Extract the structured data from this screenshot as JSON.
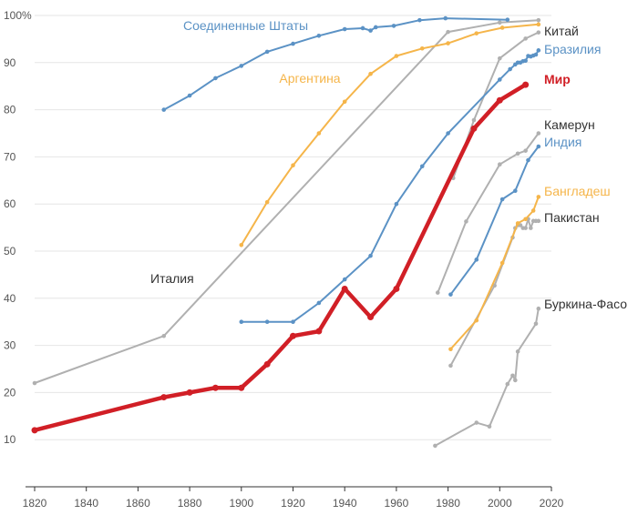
{
  "chart_data": {
    "type": "line",
    "title": "",
    "xlabel": "",
    "ylabel": "",
    "xlim": [
      1820,
      2020
    ],
    "ylim": [
      0,
      100
    ],
    "x_ticks": [
      1820,
      1840,
      1860,
      1880,
      1900,
      1920,
      1940,
      1960,
      1980,
      2000,
      2020
    ],
    "y_ticks": [
      {
        "value": 10,
        "label": "10"
      },
      {
        "value": 20,
        "label": "20"
      },
      {
        "value": 30,
        "label": "30"
      },
      {
        "value": 40,
        "label": "40"
      },
      {
        "value": 50,
        "label": "50"
      },
      {
        "value": 60,
        "label": "60"
      },
      {
        "value": 70,
        "label": "70"
      },
      {
        "value": 80,
        "label": "80"
      },
      {
        "value": 90,
        "label": "90"
      },
      {
        "value": 100,
        "label": "100%"
      }
    ],
    "series": [
      {
        "name": "Италия",
        "color": "#b0b0b0",
        "highlight": false,
        "label_anchor": "start",
        "points": [
          [
            1820,
            22
          ],
          [
            1870,
            32
          ],
          [
            1980,
            96.5
          ],
          [
            2000,
            98.5
          ],
          [
            2015,
            99
          ]
        ]
      },
      {
        "name": "Буркина-Фасо",
        "color": "#b0b0b0",
        "highlight": false,
        "label_anchor": "start",
        "points": [
          [
            1975,
            8.7
          ],
          [
            1991,
            13.6
          ],
          [
            1996,
            12.8
          ],
          [
            2003,
            21.8
          ],
          [
            2005,
            23.6
          ],
          [
            2006,
            22.6
          ],
          [
            2007,
            28.7
          ],
          [
            2014,
            34.6
          ],
          [
            2015,
            37.8
          ]
        ]
      },
      {
        "name": "Пакистан",
        "color": "#b0b0b0",
        "highlight": false,
        "label_anchor": "start",
        "points": [
          [
            1981,
            25.7
          ],
          [
            1998,
            42.7
          ],
          [
            2005,
            52.9
          ],
          [
            2006,
            54.9
          ],
          [
            2007,
            55.5
          ],
          [
            2008,
            55.5
          ],
          [
            2009,
            54.9
          ],
          [
            2010,
            54.9
          ],
          [
            2011,
            56.8
          ],
          [
            2012,
            54.9
          ],
          [
            2013,
            56.4
          ],
          [
            2014,
            56.4
          ],
          [
            2015,
            56.4
          ]
        ]
      },
      {
        "name": "Камерун",
        "color": "#b0b0b0",
        "highlight": false,
        "label_anchor": "start",
        "points": [
          [
            1976,
            41.2
          ],
          [
            1987,
            56.3
          ],
          [
            2000,
            68.4
          ],
          [
            2007,
            70.7
          ],
          [
            2010,
            71.3
          ],
          [
            2015,
            75
          ]
        ]
      },
      {
        "name": "Китай",
        "color": "#b0b0b0",
        "highlight": false,
        "label_anchor": "start",
        "points": [
          [
            1982,
            65.5
          ],
          [
            1990,
            77.8
          ],
          [
            2000,
            90.9
          ],
          [
            2010,
            95.1
          ],
          [
            2015,
            96.4
          ]
        ]
      },
      {
        "name": "Соединенные Штаты",
        "color": "#5b92c5",
        "highlight": false,
        "label_anchor": "start",
        "points": [
          [
            1870,
            80
          ],
          [
            1880,
            83
          ],
          [
            1890,
            86.7
          ],
          [
            1900,
            89.3
          ],
          [
            1910,
            92.3
          ],
          [
            1920,
            94
          ],
          [
            1930,
            95.7
          ],
          [
            1940,
            97.1
          ],
          [
            1947,
            97.3
          ],
          [
            1950,
            96.8
          ],
          [
            1952,
            97.5
          ],
          [
            1959,
            97.8
          ],
          [
            1969,
            99
          ],
          [
            1979,
            99.4
          ],
          [
            2003,
            99.1
          ]
        ]
      },
      {
        "name": "Бразилия",
        "color": "#5b92c5",
        "highlight": false,
        "label_anchor": "start",
        "points": [
          [
            1900,
            35
          ],
          [
            1910,
            35
          ],
          [
            1920,
            35
          ],
          [
            1930,
            39
          ],
          [
            1940,
            44
          ],
          [
            1950,
            49
          ],
          [
            1960,
            60
          ],
          [
            1970,
            68
          ],
          [
            1980,
            75
          ],
          [
            2000,
            86.4
          ],
          [
            2004,
            88.6
          ],
          [
            2006,
            89.6
          ],
          [
            2007,
            90
          ],
          [
            2008,
            90
          ],
          [
            2009,
            90.3
          ],
          [
            2010,
            90.4
          ],
          [
            2011,
            91.4
          ],
          [
            2012,
            91.3
          ],
          [
            2013,
            91.5
          ],
          [
            2014,
            91.7
          ],
          [
            2015,
            92.6
          ]
        ]
      },
      {
        "name": "Индия",
        "color": "#5b92c5",
        "highlight": false,
        "label_anchor": "start",
        "points": [
          [
            1981,
            40.8
          ],
          [
            1991,
            48.2
          ],
          [
            2001,
            61
          ],
          [
            2006,
            62.8
          ],
          [
            2011,
            69.3
          ],
          [
            2015,
            72.2
          ]
        ]
      },
      {
        "name": "Аргентина",
        "color": "#f5b54a",
        "highlight": false,
        "label_anchor": "middle",
        "points": [
          [
            1900,
            51.3
          ],
          [
            1910,
            60.4
          ],
          [
            1920,
            68.2
          ],
          [
            1930,
            75
          ],
          [
            1940,
            81.7
          ],
          [
            1950,
            87.6
          ],
          [
            1960,
            91.4
          ],
          [
            1970,
            93
          ],
          [
            1980,
            94.1
          ],
          [
            1991,
            96.2
          ],
          [
            2001,
            97.4
          ],
          [
            2015,
            98.1
          ]
        ]
      },
      {
        "name": "Бангладеш",
        "color": "#f5b54a",
        "highlight": false,
        "label_anchor": "start",
        "points": [
          [
            1981,
            29.2
          ],
          [
            1991,
            35.3
          ],
          [
            2001,
            47.5
          ],
          [
            2007,
            55.9
          ],
          [
            2010,
            56.8
          ],
          [
            2013,
            58.6
          ],
          [
            2015,
            61.5
          ]
        ]
      },
      {
        "name": "Мир",
        "color": "#d11f26",
        "highlight": true,
        "label_anchor": "start",
        "points": [
          [
            1820,
            12
          ],
          [
            1870,
            19
          ],
          [
            1880,
            20
          ],
          [
            1890,
            21
          ],
          [
            1900,
            21
          ],
          [
            1910,
            26
          ],
          [
            1920,
            32
          ],
          [
            1930,
            33
          ],
          [
            1940,
            42
          ],
          [
            1950,
            36
          ],
          [
            1960,
            42
          ],
          [
            1990,
            76
          ],
          [
            2000,
            82
          ],
          [
            2010,
            85.3
          ]
        ]
      }
    ]
  }
}
